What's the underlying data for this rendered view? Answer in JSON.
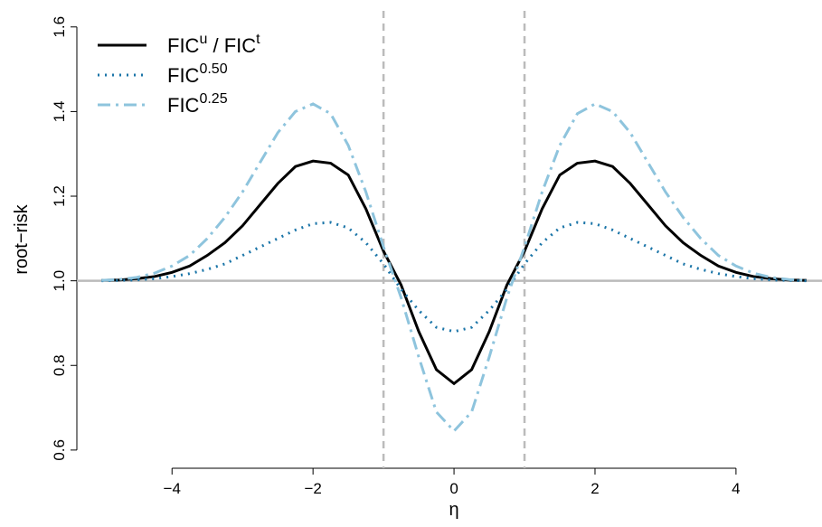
{
  "chart_data": {
    "type": "line",
    "xlabel": "η",
    "ylabel": "root−risk",
    "x": [
      -5,
      -4.75,
      -4.5,
      -4.25,
      -4,
      -3.75,
      -3.5,
      -3.25,
      -3,
      -2.75,
      -2.5,
      -2.25,
      -2,
      -1.75,
      -1.5,
      -1.25,
      -1,
      -0.75,
      -0.5,
      -0.25,
      0,
      0.25,
      0.5,
      0.75,
      1,
      1.25,
      1.5,
      1.75,
      2,
      2.25,
      2.5,
      2.75,
      3,
      3.25,
      3.5,
      3.75,
      4,
      4.25,
      4.5,
      4.75,
      5
    ],
    "series": [
      {
        "name": [
          {
            "text": "FIC"
          },
          {
            "sup": "u"
          },
          {
            "text": " / FIC"
          },
          {
            "sup": "t"
          }
        ],
        "color": "#000000",
        "dash": "none",
        "width": 3,
        "values": [
          1.001,
          1.002,
          1.005,
          1.01,
          1.02,
          1.035,
          1.06,
          1.09,
          1.13,
          1.18,
          1.23,
          1.27,
          1.283,
          1.278,
          1.25,
          1.17,
          1.07,
          0.99,
          0.88,
          0.79,
          0.757,
          0.79,
          0.88,
          0.99,
          1.07,
          1.17,
          1.25,
          1.278,
          1.283,
          1.27,
          1.23,
          1.18,
          1.13,
          1.09,
          1.06,
          1.035,
          1.02,
          1.01,
          1.005,
          1.002,
          1.001
        ]
      },
      {
        "name": [
          {
            "text": "FIC"
          },
          {
            "sup": "0.50"
          }
        ],
        "color": "#1b75a8",
        "dash": "2 6",
        "width": 3,
        "values": [
          1.0,
          1.001,
          1.002,
          1.005,
          1.01,
          1.017,
          1.027,
          1.04,
          1.06,
          1.08,
          1.1,
          1.12,
          1.135,
          1.138,
          1.125,
          1.09,
          1.04,
          0.98,
          0.93,
          0.89,
          0.88,
          0.89,
          0.93,
          0.98,
          1.04,
          1.09,
          1.125,
          1.138,
          1.135,
          1.12,
          1.1,
          1.08,
          1.06,
          1.04,
          1.027,
          1.017,
          1.01,
          1.005,
          1.002,
          1.001,
          1.0
        ]
      },
      {
        "name": [
          {
            "text": "FIC"
          },
          {
            "sup": "0.25"
          }
        ],
        "color": "#8ec4dd",
        "dash": "14 6 3 6",
        "width": 3,
        "values": [
          1.001,
          1.003,
          1.008,
          1.018,
          1.035,
          1.06,
          1.1,
          1.15,
          1.21,
          1.28,
          1.35,
          1.4,
          1.418,
          1.395,
          1.32,
          1.21,
          1.08,
          0.96,
          0.82,
          0.69,
          0.645,
          0.69,
          0.82,
          0.96,
          1.08,
          1.21,
          1.32,
          1.395,
          1.418,
          1.4,
          1.35,
          1.28,
          1.21,
          1.15,
          1.1,
          1.06,
          1.035,
          1.018,
          1.008,
          1.003,
          1.001
        ]
      }
    ],
    "xlim": [
      -5.35,
      5.22
    ],
    "ylim": [
      0.557,
      1.638
    ],
    "xticks": [
      {
        "value": -4,
        "label": "−4"
      },
      {
        "value": -2,
        "label": "−2"
      },
      0,
      2,
      4
    ],
    "yticks": [
      0.6,
      0.8,
      {
        "value": 1,
        "label": "1.0"
      },
      1.2,
      1.4,
      1.6
    ],
    "vlines": [
      -1,
      1
    ],
    "hline": 1,
    "legend": "top-left"
  }
}
